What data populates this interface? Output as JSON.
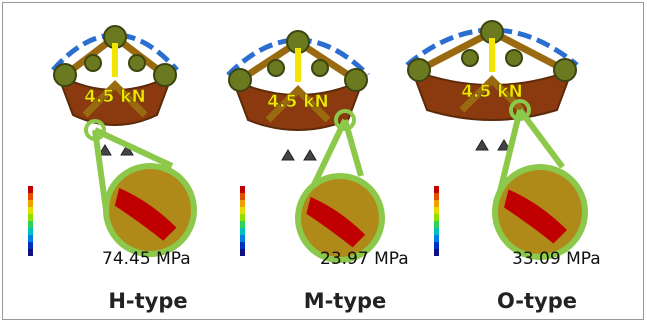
{
  "panels": [
    {
      "load": "4.5 kN",
      "stress": "74.45 MPa",
      "label": "H-type"
    },
    {
      "load": "4.5 kN",
      "stress": "23.97 MPa",
      "label": "M-type"
    },
    {
      "load": "4.5 kN",
      "stress": "33.09  MPa",
      "label": "O-type"
    }
  ]
}
